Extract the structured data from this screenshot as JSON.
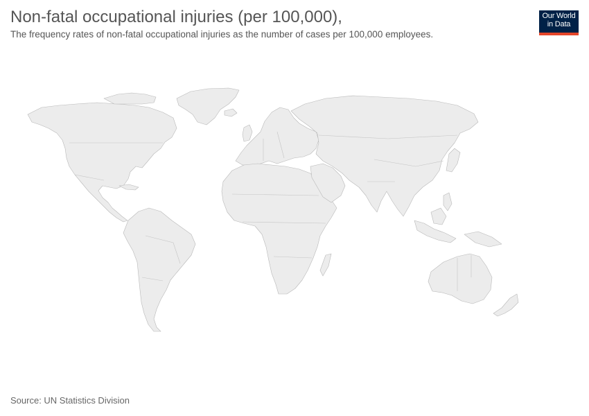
{
  "header": {
    "title": "Non-fatal occupational injuries (per 100,000),",
    "subtitle": "The frequency rates of non-fatal occupational injuries as the number of cases per 100,000 employees."
  },
  "logo": {
    "line1": "Our World",
    "line2": "in Data",
    "background_color": "#002147",
    "accent_color": "#e5462a"
  },
  "map": {
    "land_color": "#ececec",
    "border_color": "#b8b8b8",
    "no_data": true
  },
  "footer": {
    "source": "Source: UN Statistics Division"
  }
}
